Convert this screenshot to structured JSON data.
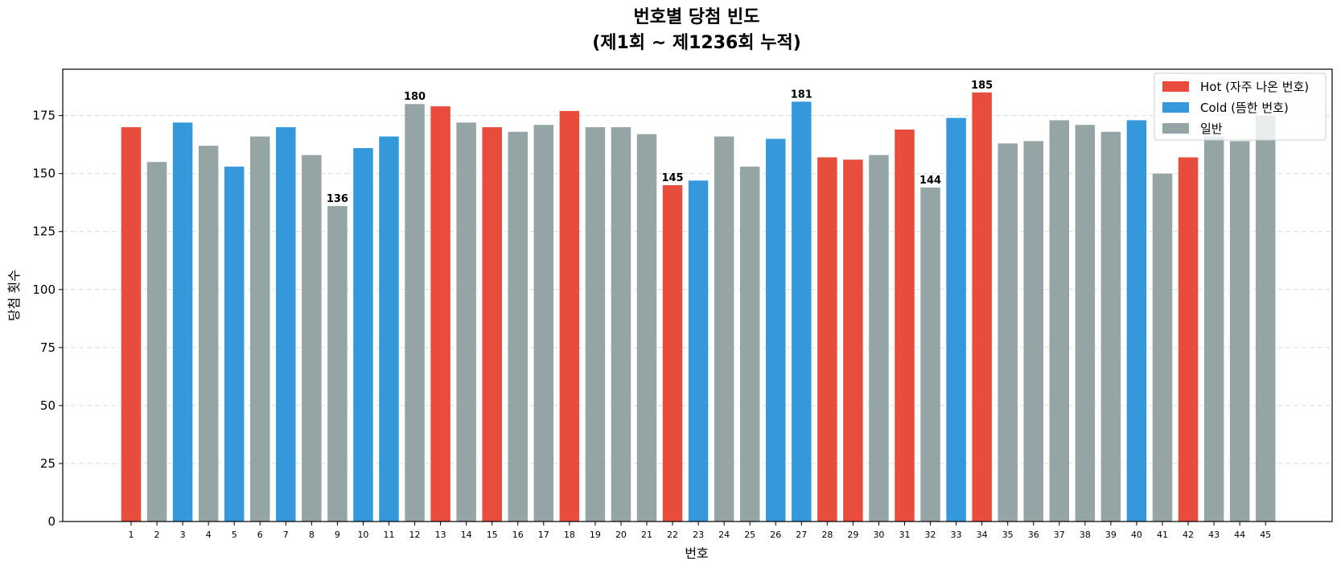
{
  "chart_data": {
    "type": "bar",
    "title_line1": "번호별 당첨 빈도",
    "title_line2": "(제1회 ~ 제1236회 누적)",
    "xlabel": "번호",
    "ylabel": "당첨 횟수",
    "ylim": [
      0,
      195
    ],
    "yticks": [
      0,
      25,
      50,
      75,
      100,
      125,
      150,
      175
    ],
    "grid": "y-dashed",
    "legend_position": "top-right",
    "colors": {
      "hot": "#e74c3c",
      "cold": "#3498db",
      "normal": "#95a5a6"
    },
    "legend": [
      {
        "key": "hot",
        "label": "Hot (자주 나온 번호)"
      },
      {
        "key": "cold",
        "label": "Cold (뜸한 번호)"
      },
      {
        "key": "normal",
        "label": "일반"
      }
    ],
    "categories": [
      "1",
      "2",
      "3",
      "4",
      "5",
      "6",
      "7",
      "8",
      "9",
      "10",
      "11",
      "12",
      "13",
      "14",
      "15",
      "16",
      "17",
      "18",
      "19",
      "20",
      "21",
      "22",
      "23",
      "24",
      "25",
      "26",
      "27",
      "28",
      "29",
      "30",
      "31",
      "32",
      "33",
      "34",
      "35",
      "36",
      "37",
      "38",
      "39",
      "40",
      "41",
      "42",
      "43",
      "44",
      "45"
    ],
    "values": [
      170,
      155,
      172,
      162,
      153,
      166,
      170,
      158,
      136,
      161,
      166,
      180,
      179,
      172,
      170,
      168,
      171,
      177,
      170,
      170,
      167,
      145,
      147,
      166,
      153,
      165,
      181,
      157,
      156,
      158,
      169,
      144,
      174,
      185,
      163,
      164,
      173,
      171,
      168,
      173,
      150,
      157,
      166,
      164,
      175
    ],
    "groups": [
      "hot",
      "normal",
      "cold",
      "normal",
      "cold",
      "normal",
      "cold",
      "normal",
      "normal",
      "cold",
      "cold",
      "normal",
      "hot",
      "normal",
      "hot",
      "normal",
      "normal",
      "hot",
      "normal",
      "normal",
      "normal",
      "hot",
      "cold",
      "normal",
      "normal",
      "cold",
      "cold",
      "hot",
      "hot",
      "normal",
      "hot",
      "normal",
      "cold",
      "hot",
      "normal",
      "normal",
      "normal",
      "normal",
      "normal",
      "cold",
      "normal",
      "hot",
      "normal",
      "normal",
      "normal"
    ],
    "annotated_categories": [
      "9",
      "12",
      "22",
      "27",
      "32",
      "34"
    ]
  }
}
